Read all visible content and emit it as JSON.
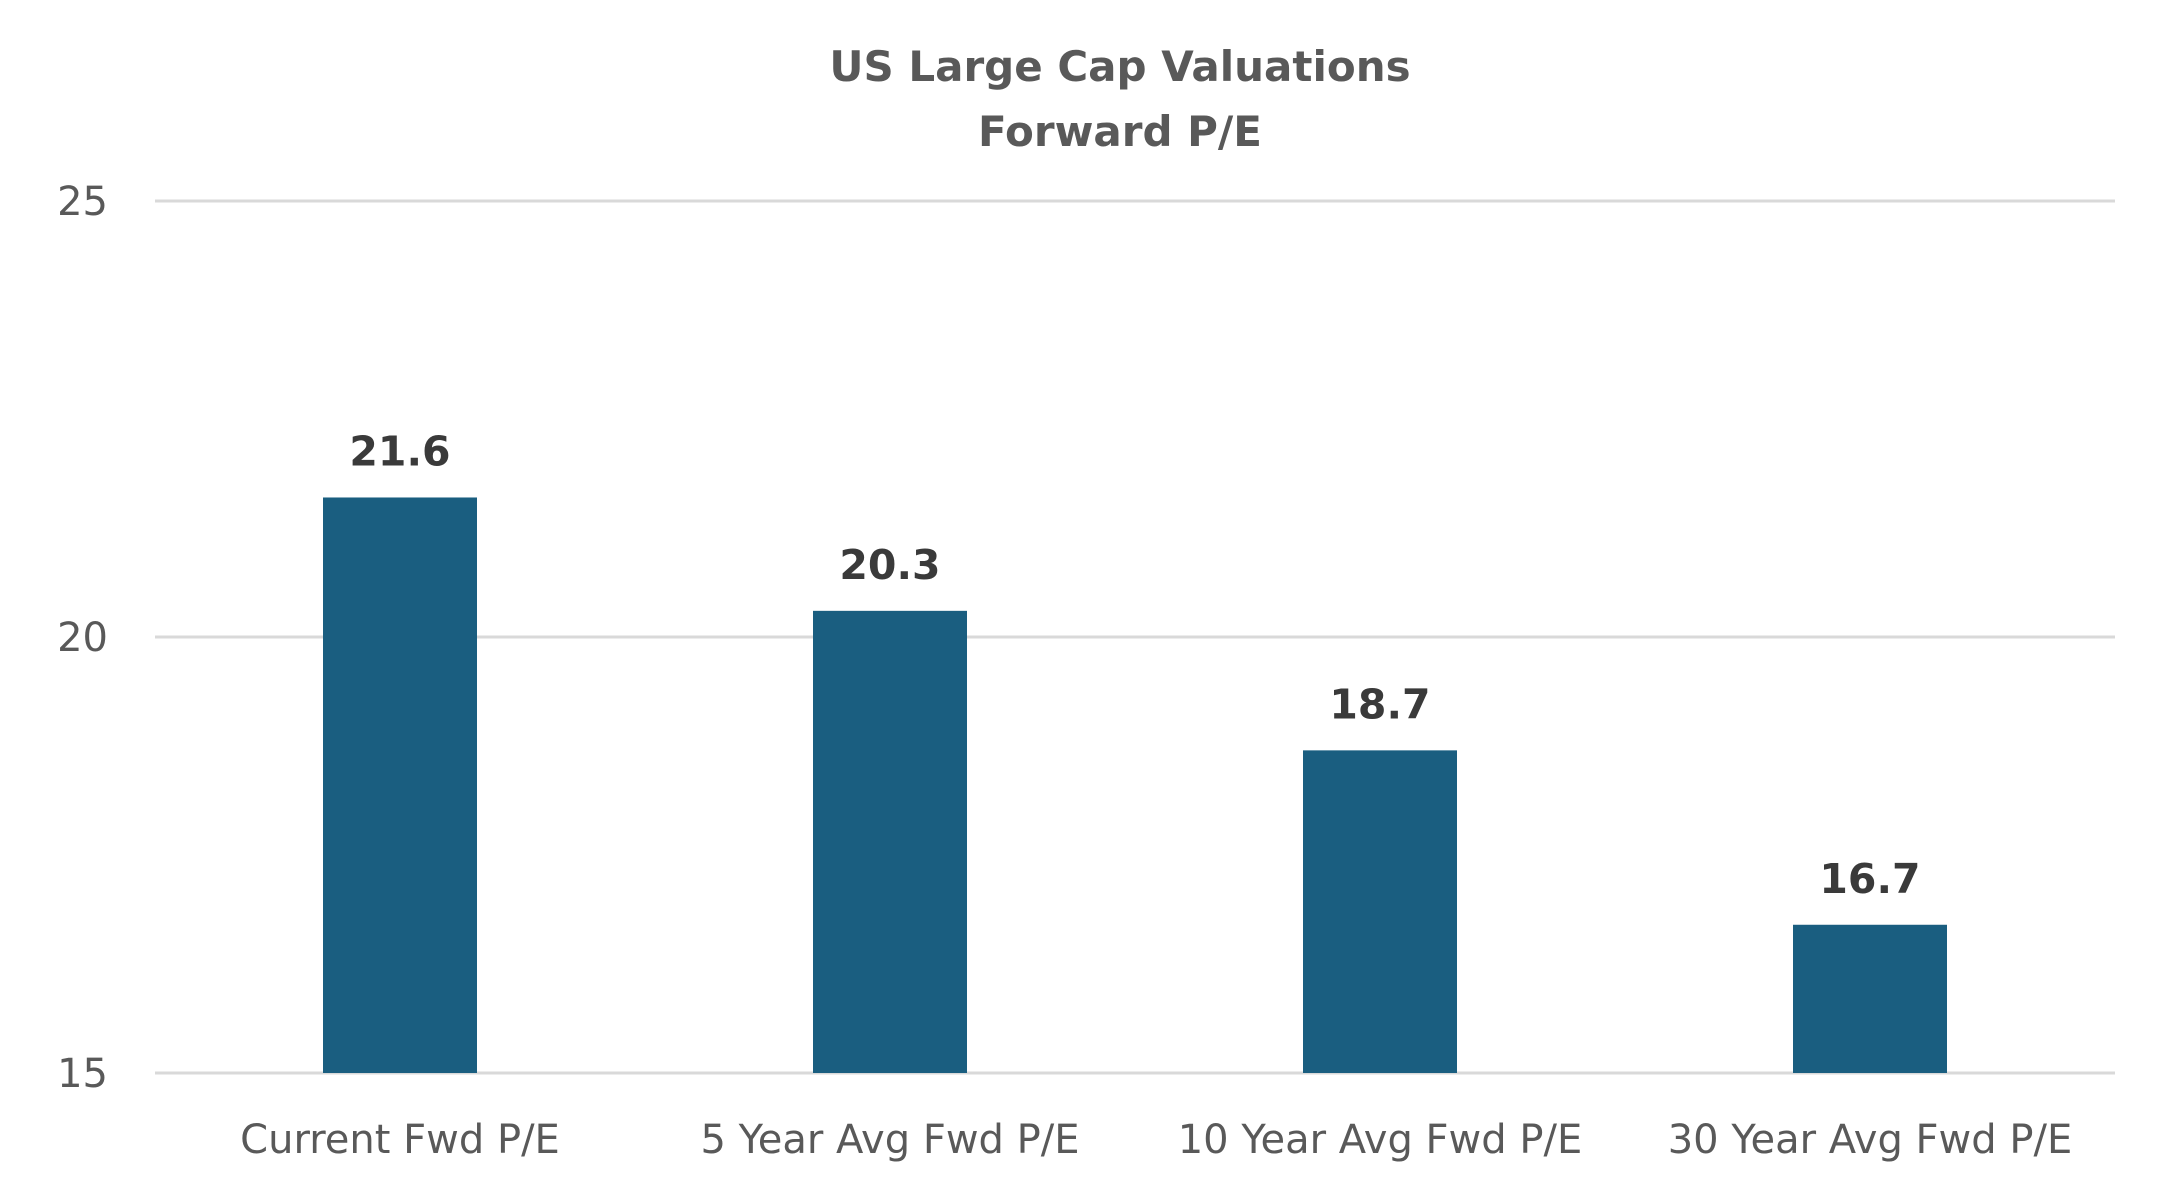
{
  "chart_data": {
    "type": "bar",
    "title": "US Large Cap Valuations",
    "subtitle": "Forward P/E",
    "categories": [
      "Current Fwd P/E",
      "5 Year Avg Fwd P/E",
      "10 Year Avg Fwd P/E",
      "30 Year Avg Fwd P/E"
    ],
    "values": [
      21.6,
      20.3,
      18.7,
      16.7
    ],
    "value_labels": [
      "21.6",
      "20.3",
      "18.7",
      "16.7"
    ],
    "xlabel": "",
    "ylabel": "",
    "ylim": [
      15,
      25
    ],
    "yticks": [
      15,
      20,
      25
    ],
    "ytick_labels": [
      "15",
      "20",
      "25"
    ],
    "grid": true,
    "legend": "none",
    "bar_color": "#1a5e80"
  }
}
